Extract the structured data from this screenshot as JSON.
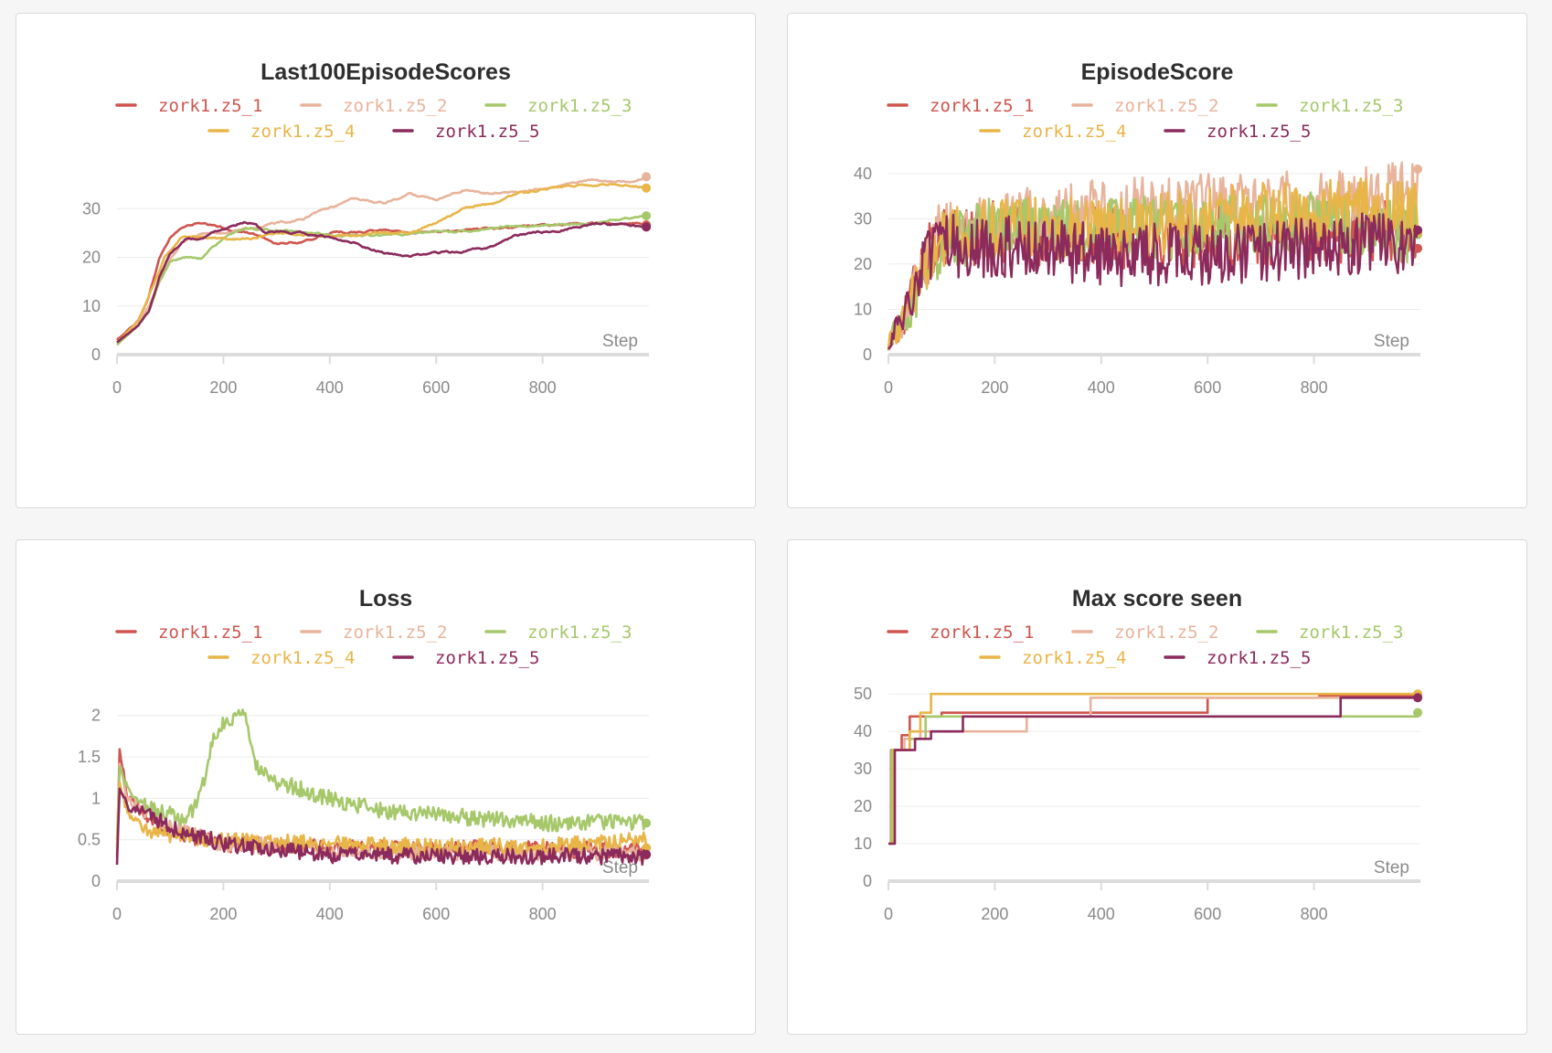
{
  "colors": {
    "zork1.z5_1": "#cf554e",
    "zork1.z5_2": "#e8b39b",
    "zork1.z5_3": "#a6c86b",
    "zork1.z5_4": "#e8b548",
    "zork1.z5_5": "#8b2a5c"
  },
  "chart_data": [
    {
      "type": "line",
      "title": "Last100EpisodeScores",
      "xlabel": "Step",
      "xlim": [
        0,
        1000
      ],
      "ylim": [
        0,
        40
      ],
      "xticks": [
        "0",
        "200",
        "400",
        "600",
        "800"
      ],
      "yticks": [
        "0",
        "10",
        "20",
        "30"
      ],
      "ytick_values": [
        0,
        10,
        20,
        30
      ],
      "noise": 0.25,
      "series": [
        {
          "name": "zork1.z5_1",
          "x": [
            0,
            40,
            60,
            80,
            100,
            120,
            150,
            200,
            250,
            300,
            350,
            400,
            500,
            600,
            700,
            800,
            900,
            995
          ],
          "y": [
            3,
            7,
            12,
            20,
            24,
            26,
            27,
            26,
            25,
            23,
            23,
            25,
            25.5,
            25,
            26,
            26.5,
            27,
            27
          ]
        },
        {
          "name": "zork1.z5_2",
          "x": [
            0,
            40,
            60,
            90,
            120,
            160,
            200,
            250,
            300,
            350,
            400,
            450,
            500,
            550,
            600,
            650,
            700,
            750,
            800,
            850,
            900,
            950,
            995
          ],
          "y": [
            2.5,
            6,
            10,
            18,
            23,
            25,
            25,
            26,
            27,
            28,
            30,
            32,
            31,
            33,
            32,
            34,
            33,
            33.5,
            34,
            35,
            36,
            35.5,
            36.5
          ]
        },
        {
          "name": "zork1.z5_3",
          "x": [
            0,
            40,
            60,
            80,
            100,
            130,
            160,
            200,
            250,
            300,
            400,
            500,
            600,
            700,
            800,
            900,
            950,
            995
          ],
          "y": [
            2,
            6,
            9,
            15,
            19,
            20,
            20,
            24,
            26,
            25.5,
            24.5,
            24.5,
            25,
            26,
            26.5,
            27,
            28,
            28.5
          ]
        },
        {
          "name": "zork1.z5_4",
          "x": [
            0,
            40,
            60,
            90,
            120,
            160,
            200,
            250,
            300,
            400,
            500,
            550,
            600,
            650,
            700,
            750,
            800,
            850,
            900,
            950,
            995
          ],
          "y": [
            2.5,
            7,
            12,
            20,
            24,
            24,
            23.5,
            24,
            25,
            24.5,
            25,
            25,
            27,
            30,
            31,
            33,
            34,
            34.5,
            35,
            35,
            34.5
          ]
        },
        {
          "name": "zork1.z5_5",
          "x": [
            0,
            40,
            60,
            80,
            100,
            130,
            160,
            200,
            240,
            260,
            280,
            300,
            350,
            400,
            450,
            500,
            550,
            600,
            650,
            700,
            750,
            800,
            850,
            900,
            950,
            995
          ],
          "y": [
            2.5,
            6,
            9,
            16,
            21,
            24,
            24,
            26,
            27.5,
            27,
            25,
            25,
            25,
            24,
            23,
            21,
            20,
            21,
            21,
            22,
            24.5,
            25,
            26,
            27,
            26.5,
            26
          ]
        }
      ]
    },
    {
      "type": "line",
      "title": "EpisodeScore",
      "xlabel": "Step",
      "xlim": [
        0,
        1000
      ],
      "ylim": [
        0,
        43
      ],
      "xticks": [
        "0",
        "200",
        "400",
        "600",
        "800"
      ],
      "yticks": [
        "0",
        "10",
        "20",
        "30",
        "40"
      ],
      "ytick_values": [
        0,
        10,
        20,
        30,
        40
      ],
      "noise": 7,
      "series": [
        {
          "name": "zork1.z5_1",
          "x": [
            0,
            30,
            60,
            100,
            200,
            400,
            600,
            800,
            995
          ],
          "y": [
            3,
            8,
            20,
            26,
            27,
            26,
            26,
            27,
            27
          ]
        },
        {
          "name": "zork1.z5_2",
          "x": [
            0,
            30,
            60,
            100,
            200,
            400,
            600,
            800,
            995
          ],
          "y": [
            3,
            8,
            20,
            27,
            29,
            32,
            33,
            34,
            36
          ]
        },
        {
          "name": "zork1.z5_3",
          "x": [
            0,
            30,
            60,
            100,
            200,
            400,
            600,
            800,
            995
          ],
          "y": [
            3,
            8,
            15,
            25,
            28,
            28,
            28,
            29,
            27
          ]
        },
        {
          "name": "zork1.z5_4",
          "x": [
            0,
            30,
            60,
            100,
            200,
            400,
            600,
            800,
            995
          ],
          "y": [
            3,
            8,
            18,
            26,
            28,
            28,
            30,
            32,
            33
          ]
        },
        {
          "name": "zork1.z5_5",
          "x": [
            0,
            30,
            60,
            100,
            200,
            400,
            600,
            800,
            995
          ],
          "y": [
            3,
            8,
            19,
            24,
            24,
            22,
            22,
            24,
            25
          ]
        }
      ]
    },
    {
      "type": "line",
      "title": "Loss",
      "xlabel": "Step",
      "xlim": [
        0,
        1000
      ],
      "ylim": [
        0,
        2.35
      ],
      "xticks": [
        "0",
        "200",
        "400",
        "600",
        "800"
      ],
      "yticks": [
        "0",
        "0.5",
        "1",
        "1.5",
        "2"
      ],
      "ytick_values": [
        0,
        0.5,
        1,
        1.5,
        2
      ],
      "noise": 0.1,
      "series": [
        {
          "name": "zork1.z5_1",
          "x": [
            0,
            5,
            20,
            60,
            100,
            200,
            400,
            600,
            800,
            995
          ],
          "y": [
            0.3,
            1.6,
            1.0,
            0.75,
            0.6,
            0.45,
            0.4,
            0.4,
            0.38,
            0.38
          ]
        },
        {
          "name": "zork1.z5_2",
          "x": [
            0,
            5,
            20,
            60,
            100,
            200,
            400,
            600,
            800,
            995
          ],
          "y": [
            0.4,
            1.4,
            1.0,
            0.8,
            0.65,
            0.45,
            0.38,
            0.35,
            0.35,
            0.34
          ]
        },
        {
          "name": "zork1.z5_3",
          "x": [
            0,
            5,
            20,
            60,
            100,
            130,
            160,
            180,
            200,
            240,
            260,
            300,
            400,
            500,
            600,
            800,
            995
          ],
          "y": [
            0.5,
            1.4,
            1.1,
            0.9,
            0.8,
            0.7,
            1.1,
            1.7,
            1.9,
            2.0,
            1.4,
            1.2,
            1.0,
            0.85,
            0.8,
            0.7,
            0.72
          ]
        },
        {
          "name": "zork1.z5_4",
          "x": [
            0,
            5,
            20,
            60,
            100,
            200,
            400,
            600,
            800,
            995
          ],
          "y": [
            0.4,
            1.2,
            0.8,
            0.6,
            0.55,
            0.5,
            0.45,
            0.42,
            0.42,
            0.5
          ]
        },
        {
          "name": "zork1.z5_5",
          "x": [
            0,
            5,
            20,
            60,
            100,
            200,
            400,
            600,
            800,
            995
          ],
          "y": [
            0.2,
            1.1,
            0.9,
            0.8,
            0.65,
            0.45,
            0.32,
            0.3,
            0.3,
            0.3
          ]
        }
      ]
    },
    {
      "type": "line",
      "title": "Max score seen",
      "xlabel": "Step",
      "xlim": [
        0,
        1000
      ],
      "ylim": [
        0,
        52
      ],
      "xticks": [
        "0",
        "200",
        "400",
        "600",
        "800"
      ],
      "yticks": [
        "0",
        "10",
        "20",
        "30",
        "40",
        "50"
      ],
      "ytick_values": [
        0,
        10,
        20,
        30,
        40,
        50
      ],
      "noise": 0,
      "step": true,
      "series": [
        {
          "name": "zork1.z5_1",
          "x": [
            0,
            5,
            25,
            40,
            100,
            600,
            810,
            995
          ],
          "y": [
            10,
            35,
            39,
            44,
            45,
            49,
            49.5,
            49.5
          ]
        },
        {
          "name": "zork1.z5_2",
          "x": [
            0,
            8,
            30,
            60,
            260,
            380,
            995
          ],
          "y": [
            10,
            35,
            38,
            40,
            44,
            49,
            49
          ]
        },
        {
          "name": "zork1.z5_3",
          "x": [
            0,
            6,
            40,
            70,
            995
          ],
          "y": [
            10,
            35,
            38,
            44,
            45
          ]
        },
        {
          "name": "zork1.z5_4",
          "x": [
            0,
            10,
            40,
            60,
            80,
            995
          ],
          "y": [
            10,
            35,
            40,
            45,
            50,
            50
          ]
        },
        {
          "name": "zork1.z5_5",
          "x": [
            0,
            12,
            50,
            80,
            140,
            850,
            995
          ],
          "y": [
            10,
            35,
            38,
            40,
            44,
            49,
            49
          ]
        }
      ]
    }
  ]
}
